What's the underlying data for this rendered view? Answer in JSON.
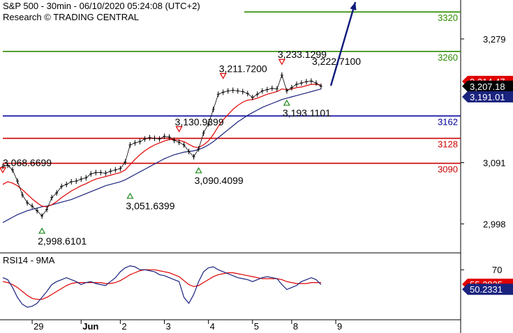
{
  "header": {
    "title": "S&P 500 - 30min - 06/10/2020 05:24:08 (UTC+2)",
    "subtitle": "Research © TRADING CENTRAL"
  },
  "chart_data": [
    {
      "type": "line",
      "panel": "price",
      "series": [
        {
          "role": "price",
          "color": "#000000",
          "values": [
            3085,
            3087,
            3080,
            3063,
            3042,
            3030,
            3025,
            3018,
            3010,
            3020,
            3038,
            3045,
            3055,
            3058,
            3062,
            3063,
            3066,
            3068,
            3074,
            3076,
            3076,
            3075,
            3078,
            3080,
            3082,
            3092,
            3118,
            3121,
            3123,
            3127,
            3129,
            3128,
            3127,
            3131,
            3130,
            3125,
            3122,
            3118,
            3108,
            3100,
            3112,
            3136,
            3150,
            3172,
            3195,
            3198,
            3200,
            3201,
            3200,
            3199,
            3196,
            3190,
            3195,
            3200,
            3202,
            3204,
            3203,
            3224,
            3200,
            3205,
            3210,
            3212,
            3214,
            3215,
            3212,
            3207
          ]
        },
        {
          "role": "ma-fast",
          "color": "#e00000",
          "values": [
            3058,
            3062,
            3060,
            3056,
            3050,
            3043,
            3036,
            3030,
            3025,
            3024,
            3027,
            3032,
            3038,
            3043,
            3048,
            3052,
            3056,
            3059,
            3063,
            3066,
            3068,
            3070,
            3072,
            3074,
            3076,
            3080,
            3088,
            3096,
            3103,
            3109,
            3114,
            3118,
            3121,
            3124,
            3126,
            3126,
            3125,
            3123,
            3119,
            3115,
            3114,
            3118,
            3124,
            3134,
            3146,
            3156,
            3164,
            3172,
            3178,
            3183,
            3186,
            3187,
            3189,
            3192,
            3195,
            3197,
            3199,
            3203,
            3202,
            3203,
            3205,
            3206,
            3208,
            3210,
            3210,
            3209
          ]
        },
        {
          "role": "ma-slow",
          "color": "#1a237e",
          "values": [
            3000,
            3004,
            3008,
            3012,
            3015,
            3018,
            3020,
            3022,
            3024,
            3025,
            3027,
            3029,
            3031,
            3033,
            3035,
            3038,
            3041,
            3044,
            3047,
            3050,
            3053,
            3056,
            3058,
            3060,
            3062,
            3065,
            3069,
            3073,
            3077,
            3081,
            3085,
            3089,
            3093,
            3097,
            3100,
            3103,
            3105,
            3107,
            3108,
            3109,
            3111,
            3114,
            3118,
            3123,
            3129,
            3135,
            3141,
            3147,
            3153,
            3158,
            3163,
            3167,
            3171,
            3175,
            3178,
            3181,
            3184,
            3187,
            3189,
            3191,
            3193,
            3195,
            3197,
            3199,
            3201,
            3203
          ]
        }
      ],
      "levels": [
        {
          "label": "3320",
          "value": 3320,
          "color": "#2e8b00"
        },
        {
          "label": "3260",
          "value": 3260,
          "color": "#2e8b00"
        },
        {
          "label": "3162",
          "value": 3162,
          "color": "#00009a"
        },
        {
          "label": "3128",
          "value": 3128,
          "color": "#cc0000"
        },
        {
          "label": "3090",
          "value": 3090,
          "color": "#cc0000"
        }
      ],
      "annotations": [
        {
          "text": "3,068.6699",
          "x": 0,
          "value": 3068.6699,
          "marker": "down"
        },
        {
          "text": "2,998.6101",
          "x": 8,
          "value": 2998.6101,
          "marker": "up"
        },
        {
          "text": "3,051.6399",
          "x": 26,
          "value": 3051.6399,
          "marker": "up"
        },
        {
          "text": "3,130.9399",
          "x": 36,
          "value": 3130.9399,
          "marker": "down"
        },
        {
          "text": "3,090.4099",
          "x": 40,
          "value": 3090.4099,
          "marker": "up"
        },
        {
          "text": "3,211.7200",
          "x": 45,
          "value": 3211.72,
          "marker": "down"
        },
        {
          "text": "3,233.1299",
          "x": 57,
          "value": 3233.1299,
          "marker": "down"
        },
        {
          "text": "3,193.1101",
          "x": 58,
          "value": 3193.1101,
          "marker": "up"
        },
        {
          "text": "3,222.7100",
          "x": 64,
          "value": 3222.71,
          "marker": "none"
        }
      ],
      "y_ticks": [
        "3,279",
        "3,091",
        "2,998"
      ],
      "y_tick_values": [
        3279,
        3091,
        2998
      ],
      "badges": [
        {
          "text": "3,214.47",
          "value": 3214.47,
          "bg": "#e00000",
          "fg": "#ffffff"
        },
        {
          "text": "3,207.18",
          "value": 3207.18,
          "bg": "#000000",
          "fg": "#ffffff"
        },
        {
          "text": "3,191.01",
          "value": 3191.01,
          "bg": "#1a237e",
          "fg": "#ffffff"
        }
      ],
      "ylim": [
        2955,
        3335
      ],
      "arrow": {
        "from": {
          "x": 67,
          "value": 3208
        },
        "to": {
          "x": 72,
          "value": 3335
        },
        "color": "#0d1a7a"
      }
    },
    {
      "type": "line",
      "panel": "rsi",
      "title": "RSI14 - 9MA",
      "series": [
        {
          "role": "rsi",
          "color": "#1a237e",
          "values": [
            62,
            60,
            52,
            42,
            35,
            32,
            33,
            36,
            42,
            48,
            55,
            58,
            60,
            62,
            60,
            58,
            55,
            57,
            58,
            56,
            55,
            54,
            58,
            62,
            68,
            72,
            74,
            73,
            70,
            70,
            69,
            68,
            65,
            64,
            62,
            60,
            58,
            42,
            36,
            45,
            58,
            68,
            72,
            73,
            70,
            68,
            66,
            64,
            62,
            61,
            60,
            58,
            60,
            62,
            63,
            62,
            61,
            55,
            50,
            52,
            54,
            58,
            60,
            62,
            60,
            55
          ]
        },
        {
          "role": "ma",
          "color": "#e00000",
          "values": [
            58,
            57,
            55,
            52,
            48,
            44,
            41,
            40,
            40,
            42,
            45,
            48,
            51,
            54,
            56,
            57,
            57,
            57,
            57,
            57,
            57,
            56,
            56,
            57,
            59,
            62,
            65,
            67,
            69,
            70,
            70,
            70,
            69,
            68,
            67,
            65,
            63,
            59,
            55,
            53,
            54,
            57,
            60,
            63,
            65,
            66,
            67,
            67,
            66,
            65,
            64,
            63,
            62,
            61,
            61,
            61,
            61,
            60,
            58,
            57,
            56,
            56,
            56,
            57,
            57,
            57
          ]
        }
      ],
      "y_ticks": [
        "70"
      ],
      "y_tick_values": [
        70
      ],
      "badges": [
        {
          "text": "55.2825",
          "value": 55.2825,
          "bg": "#e00000",
          "fg": "#ffffff"
        },
        {
          "text": "50.2331",
          "value": 50.2331,
          "bg": "#1a237e",
          "fg": "#ffffff"
        }
      ],
      "ylim": [
        20,
        85
      ]
    }
  ],
  "x_axis": {
    "labels": [
      {
        "text": "29",
        "x": 6
      },
      {
        "text": "Jun",
        "x": 16
      },
      {
        "text": "2",
        "x": 24
      },
      {
        "text": "3",
        "x": 33
      },
      {
        "text": "4",
        "x": 42
      },
      {
        "text": "5",
        "x": 51
      },
      {
        "text": "8",
        "x": 59
      },
      {
        "text": "9",
        "x": 68
      }
    ]
  },
  "colors": {
    "background": "#ffffff",
    "frame": "#000000",
    "separator": "#000000"
  }
}
